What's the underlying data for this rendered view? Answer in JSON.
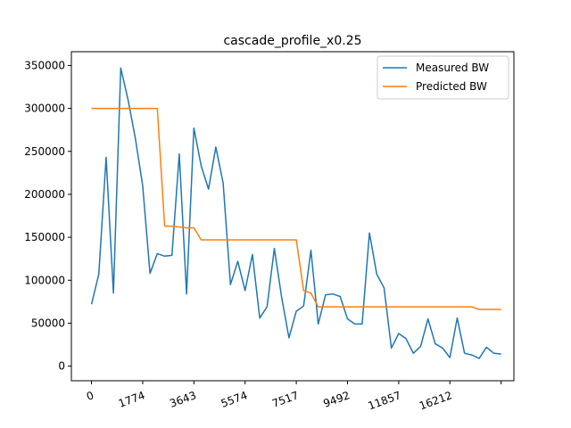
{
  "chart_data": {
    "type": "line",
    "title": "cascade_profile_x0.25",
    "xlabel": "",
    "ylabel": "",
    "x_tick_labels": [
      {
        "value": 0,
        "label": "0"
      },
      {
        "value": 7,
        "label": "1774"
      },
      {
        "value": 14,
        "label": "3643"
      },
      {
        "value": 21,
        "label": "5574"
      },
      {
        "value": 28,
        "label": "7517"
      },
      {
        "value": 35,
        "label": "9492"
      },
      {
        "value": 42,
        "label": "11857"
      },
      {
        "value": 49,
        "label": "16212"
      },
      {
        "value": 56,
        "label": ""
      }
    ],
    "y_ticks": [
      0,
      50000,
      100000,
      150000,
      200000,
      250000,
      300000,
      350000
    ],
    "y_tick_labels": [
      "0",
      "50000",
      "100000",
      "150000",
      "200000",
      "250000",
      "300000",
      "350000"
    ],
    "xlim": [
      -2.75,
      57.75
    ],
    "ylim": [
      -17000,
      366000
    ],
    "legend_position": "top-right",
    "series": [
      {
        "name": "Measured BW",
        "color": "#1f77b4",
        "values": [
          72000,
          107000,
          243000,
          85000,
          347000,
          310000,
          265000,
          210000,
          108000,
          131000,
          128000,
          129000,
          247000,
          84000,
          277000,
          233000,
          206000,
          255000,
          213000,
          95000,
          122000,
          88000,
          130000,
          56000,
          69000,
          137000,
          80000,
          33000,
          64000,
          70000,
          135000,
          49000,
          83000,
          84000,
          81000,
          55000,
          49000,
          49000,
          155000,
          107000,
          91000,
          21000,
          38000,
          32000,
          15000,
          23000,
          55000,
          26000,
          21000,
          10000,
          56000,
          15000,
          13000,
          9000,
          22000,
          15000,
          14000
        ]
      },
      {
        "name": "Predicted BW",
        "color": "#ff7f0e",
        "values": [
          300000,
          300000,
          300000,
          300000,
          300000,
          300000,
          300000,
          300000,
          300000,
          300000,
          163000,
          163000,
          162000,
          161000,
          161000,
          147000,
          147000,
          147000,
          147000,
          147000,
          147000,
          147000,
          147000,
          147000,
          147000,
          147000,
          147000,
          147000,
          147000,
          88000,
          85000,
          69000,
          69000,
          69000,
          69000,
          69000,
          69000,
          69000,
          69000,
          69000,
          69000,
          69000,
          69000,
          69000,
          69000,
          69000,
          69000,
          69000,
          69000,
          69000,
          69000,
          69000,
          69000,
          66000,
          66000,
          66000,
          66000
        ]
      }
    ]
  }
}
